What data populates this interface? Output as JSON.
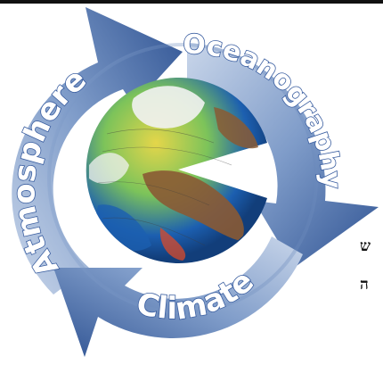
{
  "logo": {
    "labels": {
      "atmosphere": "Atmosphere",
      "oceanography": "Oceanography",
      "climate": "Climate"
    },
    "colors": {
      "arrow_light": "#c9d6ea",
      "arrow_mid": "#7f9cc9",
      "arrow_dark": "#2f5393",
      "label_fill": "#ffffff",
      "label_stroke": "#3a5ea0",
      "ocean_blue": "#1c5fb0",
      "land_brown": "#8a5a34",
      "sea_green": "#7cc35a",
      "sea_yellow": "#e4d64a",
      "ice_white": "#f2f2f2"
    },
    "icons": [
      "cycle-arrows-icon",
      "globe-icon"
    ]
  },
  "side_text": {
    "line1": "ש",
    "line2": "ה"
  }
}
